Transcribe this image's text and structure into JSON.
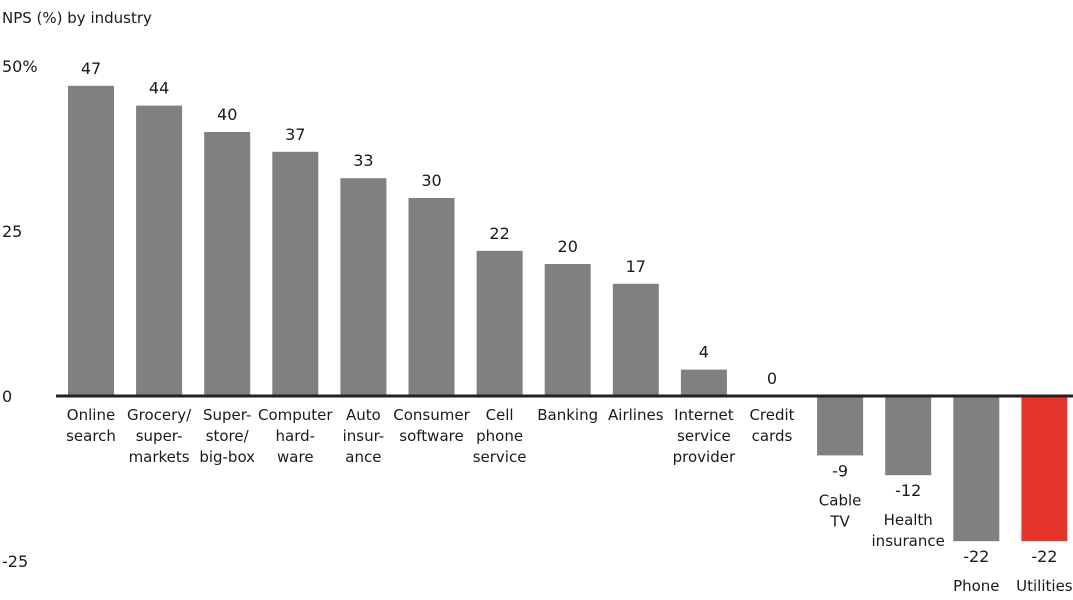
{
  "chart_data": {
    "type": "bar",
    "title": "NPS (%) by industry",
    "ylim": [
      -25,
      50
    ],
    "yticks": [
      {
        "value": 50,
        "label": "50%"
      },
      {
        "value": 25,
        "label": "25"
      },
      {
        "value": 0,
        "label": "0"
      },
      {
        "value": -25,
        "label": "-25"
      }
    ],
    "categories": [
      [
        "Online",
        "search"
      ],
      [
        "Grocery/",
        "super-",
        "markets"
      ],
      [
        "Super-",
        "store/",
        "big-box"
      ],
      [
        "Computer",
        "hard-",
        "ware"
      ],
      [
        "Auto",
        "insur-",
        "ance"
      ],
      [
        "Consumer",
        "software"
      ],
      [
        "Cell",
        "phone",
        "service"
      ],
      [
        "Banking"
      ],
      [
        "Airlines"
      ],
      [
        "Internet",
        "service",
        "provider"
      ],
      [
        "Credit",
        "cards"
      ],
      [
        "Cable",
        "TV"
      ],
      [
        "Health",
        "insurance"
      ],
      [
        "Phone"
      ],
      [
        "Utilities"
      ]
    ],
    "values": [
      47,
      44,
      40,
      37,
      33,
      30,
      22,
      20,
      17,
      4,
      0,
      -9,
      -12,
      -22,
      -22
    ],
    "value_labels": [
      "47",
      "44",
      "40",
      "37",
      "33",
      "30",
      "22",
      "20",
      "17",
      "4",
      "0",
      "-9",
      "-12",
      "-22",
      "-22"
    ],
    "colors": [
      "#808083",
      "#808083",
      "#808083",
      "#808083",
      "#808083",
      "#808083",
      "#808083",
      "#808083",
      "#808083",
      "#808083",
      "#808083",
      "#808083",
      "#808083",
      "#808083",
      "#e8352b"
    ],
    "baseline_color": "#222222",
    "grid": false,
    "legend": "none"
  }
}
